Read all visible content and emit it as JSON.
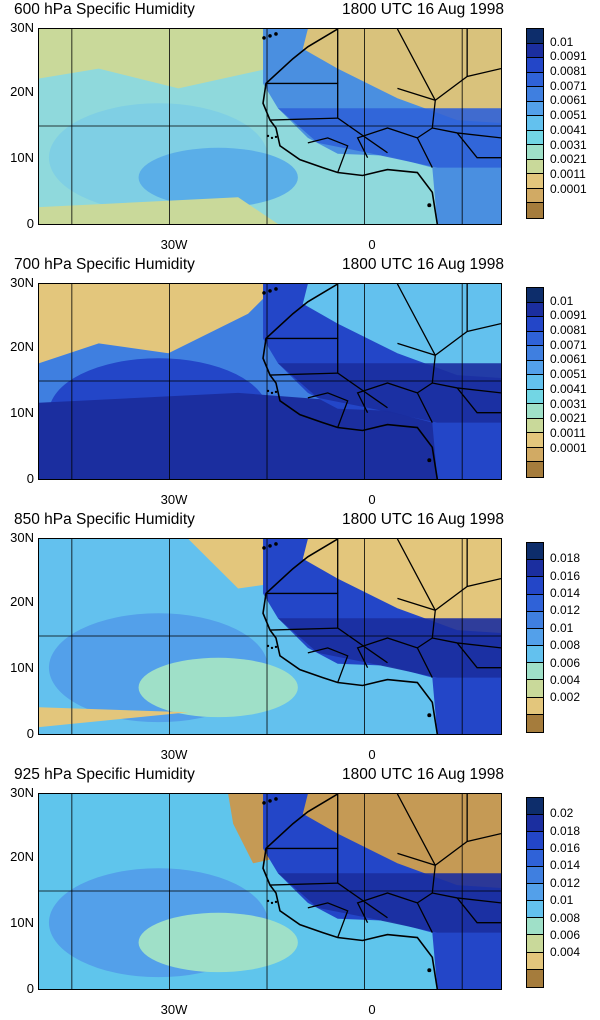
{
  "panels": [
    {
      "title_left": "600 hPa Specific Humidity",
      "title_right": "1800 UTC 16 Aug 1998",
      "lat_labels": [
        "30N",
        "20N",
        "10N",
        "0"
      ],
      "lon_labels": [
        "30W",
        "0"
      ],
      "colorbar_labels": [
        "0.01",
        "0.0091",
        "0.0081",
        "0.0071",
        "0.0061",
        "0.0051",
        "0.0041",
        "0.0031",
        "0.0021",
        "0.0011",
        "0.0001"
      ],
      "colorbar_colors": [
        "#0d2d6b",
        "#1b2e9f",
        "#2346c8",
        "#2f62d8",
        "#3f7fe0",
        "#53a0ea",
        "#63c1ee",
        "#72d6e4",
        "#9fe0c8",
        "#c9d99a",
        "#e3c67c",
        "#d1aa64",
        "#a57c3c"
      ]
    },
    {
      "title_left": "700 hPa Specific Humidity",
      "title_right": "1800 UTC 16 Aug 1998",
      "lat_labels": [
        "30N",
        "20N",
        "10N",
        "0"
      ],
      "lon_labels": [
        "30W",
        "0"
      ],
      "colorbar_labels": [
        "0.01",
        "0.0091",
        "0.0081",
        "0.0071",
        "0.0061",
        "0.0051",
        "0.0041",
        "0.0031",
        "0.0021",
        "0.0011",
        "0.0001"
      ],
      "colorbar_colors": [
        "#0d2d6b",
        "#1b2e9f",
        "#2346c8",
        "#2f62d8",
        "#3f7fe0",
        "#53a0ea",
        "#63c1ee",
        "#72d6e4",
        "#9fe0c8",
        "#c9d99a",
        "#e3c67c",
        "#d1aa64",
        "#a57c3c"
      ]
    },
    {
      "title_left": "850 hPa Specific Humidity",
      "title_right": "1800 UTC 16 Aug 1998",
      "lat_labels": [
        "30N",
        "20N",
        "10N",
        "0"
      ],
      "lon_labels": [
        "30W",
        "0"
      ],
      "colorbar_labels": [
        "0.018",
        "0.016",
        "0.014",
        "0.012",
        "0.01",
        "0.008",
        "0.006",
        "0.004",
        "0.002"
      ],
      "colorbar_colors": [
        "#0d2d6b",
        "#1b2e9f",
        "#2346c8",
        "#2f62d8",
        "#3f7fe0",
        "#53a0ea",
        "#63c1ee",
        "#9fe0c8",
        "#c9d99a",
        "#e3c67c",
        "#a57c3c"
      ]
    },
    {
      "title_left": "925 hPa Specific Humidity",
      "title_right": "1800 UTC 16 Aug 1998",
      "lat_labels": [
        "30N",
        "20N",
        "10N",
        "0"
      ],
      "lon_labels": [
        "30W",
        "0"
      ],
      "colorbar_labels": [
        "0.02",
        "0.018",
        "0.016",
        "0.014",
        "0.012",
        "0.01",
        "0.008",
        "0.006",
        "0.004"
      ],
      "colorbar_colors": [
        "#0d2d6b",
        "#1b2e9f",
        "#2346c8",
        "#2f62d8",
        "#3f7fe0",
        "#53a0ea",
        "#63c1ee",
        "#9fe0c8",
        "#c9d99a",
        "#e3c67c",
        "#a57c3c"
      ]
    }
  ]
}
